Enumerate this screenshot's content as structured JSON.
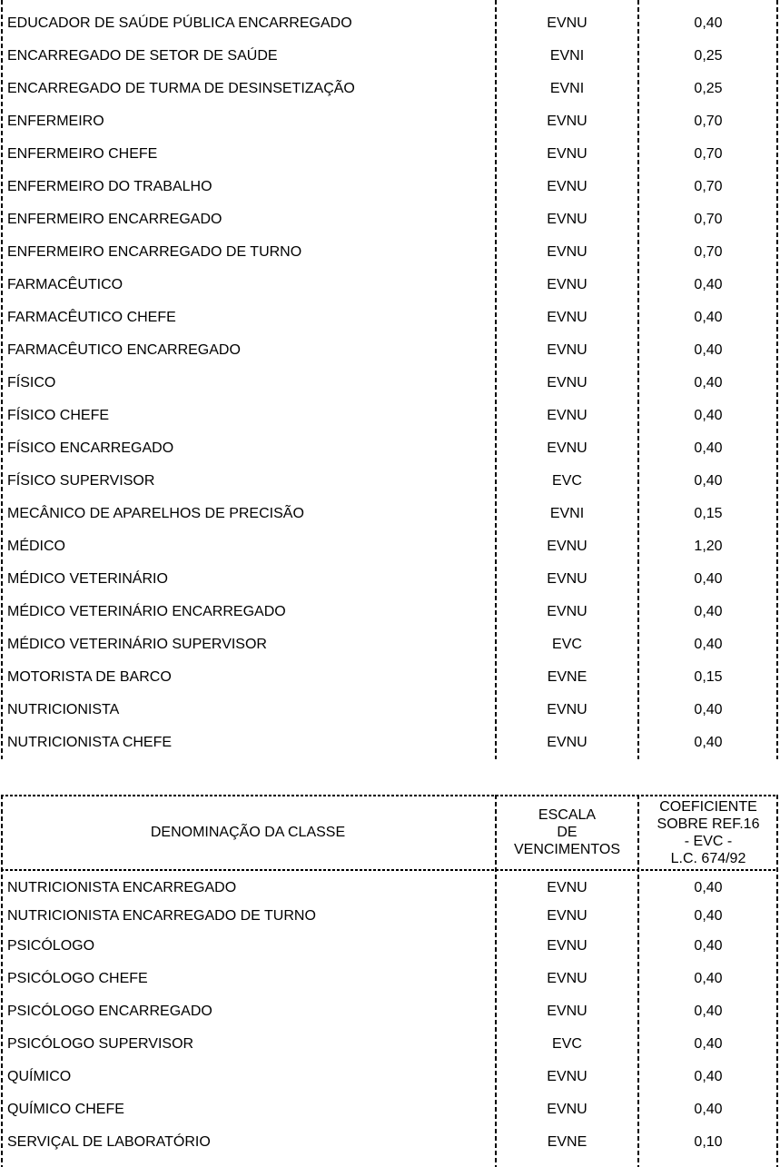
{
  "page": {
    "background": "#ffffff",
    "text_color": "#000000",
    "border_color": "#000000"
  },
  "table_continued": {
    "rows": [
      {
        "classe": "EDUCADOR DE SAÚDE PÚBLICA ENCARREGADO",
        "escala": "EVNU",
        "coef": "0,40"
      },
      {
        "classe": "ENCARREGADO DE SETOR DE SAÚDE",
        "escala": "EVNI",
        "coef": "0,25"
      },
      {
        "classe": "ENCARREGADO DE TURMA DE DESINSETIZAÇÃO",
        "escala": "EVNI",
        "coef": "0,25"
      },
      {
        "classe": "ENFERMEIRO",
        "escala": "EVNU",
        "coef": "0,70"
      },
      {
        "classe": "ENFERMEIRO CHEFE",
        "escala": "EVNU",
        "coef": "0,70"
      },
      {
        "classe": "ENFERMEIRO DO TRABALHO",
        "escala": "EVNU",
        "coef": "0,70"
      },
      {
        "classe": "ENFERMEIRO ENCARREGADO",
        "escala": "EVNU",
        "coef": "0,70"
      },
      {
        "classe": "ENFERMEIRO ENCARREGADO DE TURNO",
        "escala": "EVNU",
        "coef": "0,70"
      },
      {
        "classe": "FARMACÊUTICO",
        "escala": "EVNU",
        "coef": "0,40"
      },
      {
        "classe": "FARMACÊUTICO CHEFE",
        "escala": "EVNU",
        "coef": "0,40"
      },
      {
        "classe": "FARMACÊUTICO ENCARREGADO",
        "escala": "EVNU",
        "coef": "0,40"
      },
      {
        "classe": "FÍSICO",
        "escala": "EVNU",
        "coef": "0,40"
      },
      {
        "classe": "FÍSICO CHEFE",
        "escala": "EVNU",
        "coef": "0,40"
      },
      {
        "classe": "FÍSICO ENCARREGADO",
        "escala": "EVNU",
        "coef": "0,40"
      },
      {
        "classe": "FÍSICO SUPERVISOR",
        "escala": "EVC",
        "coef": "0,40"
      },
      {
        "classe": "MECÂNICO DE APARELHOS DE PRECISÃO",
        "escala": "EVNI",
        "coef": "0,15"
      },
      {
        "classe": "MÉDICO",
        "escala": "EVNU",
        "coef": "1,20"
      },
      {
        "classe": "MÉDICO VETERINÁRIO",
        "escala": "EVNU",
        "coef": "0,40"
      },
      {
        "classe": "MÉDICO VETERINÁRIO ENCARREGADO",
        "escala": "EVNU",
        "coef": "0,40"
      },
      {
        "classe": "MÉDICO VETERINÁRIO SUPERVISOR",
        "escala": "EVC",
        "coef": "0,40"
      },
      {
        "classe": "MOTORISTA DE BARCO",
        "escala": "EVNE",
        "coef": "0,15"
      },
      {
        "classe": "NUTRICIONISTA",
        "escala": "EVNU",
        "coef": "0,40"
      },
      {
        "classe": "NUTRICIONISTA CHEFE",
        "escala": "EVNU",
        "coef": "0,40"
      }
    ]
  },
  "table_new_page": {
    "header": {
      "col_classe": "DENOMINAÇÃO DA CLASSE",
      "col_escala_lines": [
        "ESCALA",
        "DE",
        "VENCIMENTOS"
      ],
      "col_coef_lines": [
        "COEFICIENTE",
        "SOBRE REF.16",
        "- EVC -",
        "L.C. 674/92"
      ]
    },
    "rows": [
      {
        "classe": "NUTRICIONISTA ENCARREGADO",
        "escala": "EVNU",
        "coef": "0,40"
      },
      {
        "classe": "NUTRICIONISTA ENCARREGADO DE TURNO",
        "escala": "EVNU",
        "coef": "0,40"
      },
      {
        "classe": "PSICÓLOGO",
        "escala": "EVNU",
        "coef": "0,40"
      },
      {
        "classe": "PSICÓLOGO CHEFE",
        "escala": "EVNU",
        "coef": "0,40"
      },
      {
        "classe": "PSICÓLOGO ENCARREGADO",
        "escala": "EVNU",
        "coef": "0,40"
      },
      {
        "classe": "PSICÓLOGO SUPERVISOR",
        "escala": "EVC",
        "coef": "0,40"
      },
      {
        "classe": "QUÍMICO",
        "escala": "EVNU",
        "coef": "0,40"
      },
      {
        "classe": "QUÍMICO CHEFE",
        "escala": "EVNU",
        "coef": "0,40"
      },
      {
        "classe": "SERVIÇAL DE LABORATÓRIO",
        "escala": "EVNE",
        "coef": "0,10"
      }
    ]
  }
}
